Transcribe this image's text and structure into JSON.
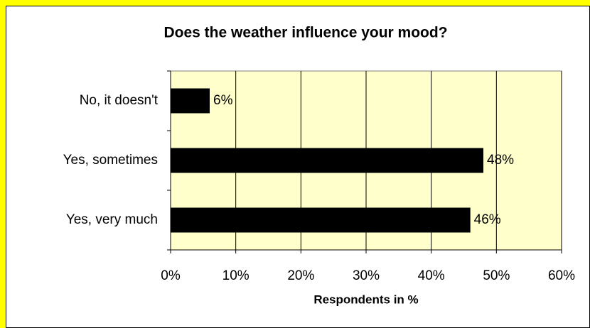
{
  "chart_data": {
    "type": "barh",
    "title": "Does the weather influence your mood?",
    "categories": [
      "No, it doesn't",
      "Yes, sometimes",
      "Yes, very much"
    ],
    "values": [
      6,
      48,
      46
    ],
    "value_labels": [
      "6%",
      "48%",
      "46%"
    ],
    "color": "#000000",
    "plot_background": "#ffffcc",
    "x_label": "Respondents in %",
    "xlim": [
      0,
      60
    ],
    "xticks": [
      {
        "value": 0,
        "label": "0%"
      },
      {
        "value": 10,
        "label": "10%"
      },
      {
        "value": 20,
        "label": "20%"
      },
      {
        "value": 30,
        "label": "30%"
      },
      {
        "value": 40,
        "label": "40%"
      },
      {
        "value": 50,
        "label": "50%"
      },
      {
        "value": 60,
        "label": "60%"
      }
    ],
    "grid": true
  }
}
